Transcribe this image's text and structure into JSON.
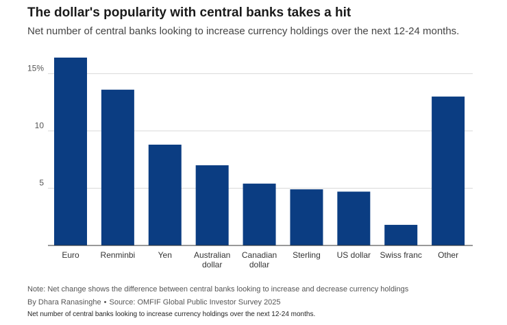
{
  "chart_data": {
    "type": "bar",
    "title": "The dollar's popularity with central banks takes a hit",
    "subtitle": "Net number of central banks looking to increase currency holdings over the next 12-24 months.",
    "categories": [
      [
        "Euro"
      ],
      [
        "Renminbi"
      ],
      [
        "Yen"
      ],
      [
        "Australian",
        "dollar"
      ],
      [
        "Canadian",
        "dollar"
      ],
      [
        "Sterling"
      ],
      [
        "US dollar"
      ],
      [
        "Swiss franc"
      ],
      [
        "Other"
      ]
    ],
    "values": [
      16.4,
      13.6,
      8.8,
      7.0,
      5.4,
      4.9,
      4.7,
      1.8,
      13.0
    ],
    "xlabel": "",
    "ylabel": "",
    "ylim": [
      0,
      16.4
    ],
    "yticks": [
      5,
      10,
      15
    ],
    "ytick_labels": [
      "5",
      "10",
      "15%"
    ],
    "grid": true,
    "colors": {
      "bar": "#0b3d82",
      "grid": "#d9d9d9",
      "axis": "#333333",
      "tick_text": "#555555"
    }
  },
  "notes": {
    "note": "Note: Net change shows the difference between central banks looking to increase and decrease currency holdings",
    "author": "By Dhara Ranasinghe",
    "separator": "•",
    "source": "Source: OMFIF Global Public Investor Survey 2025",
    "caption": "Net number of central banks looking to increase currency holdings over the next 12-24 months."
  }
}
